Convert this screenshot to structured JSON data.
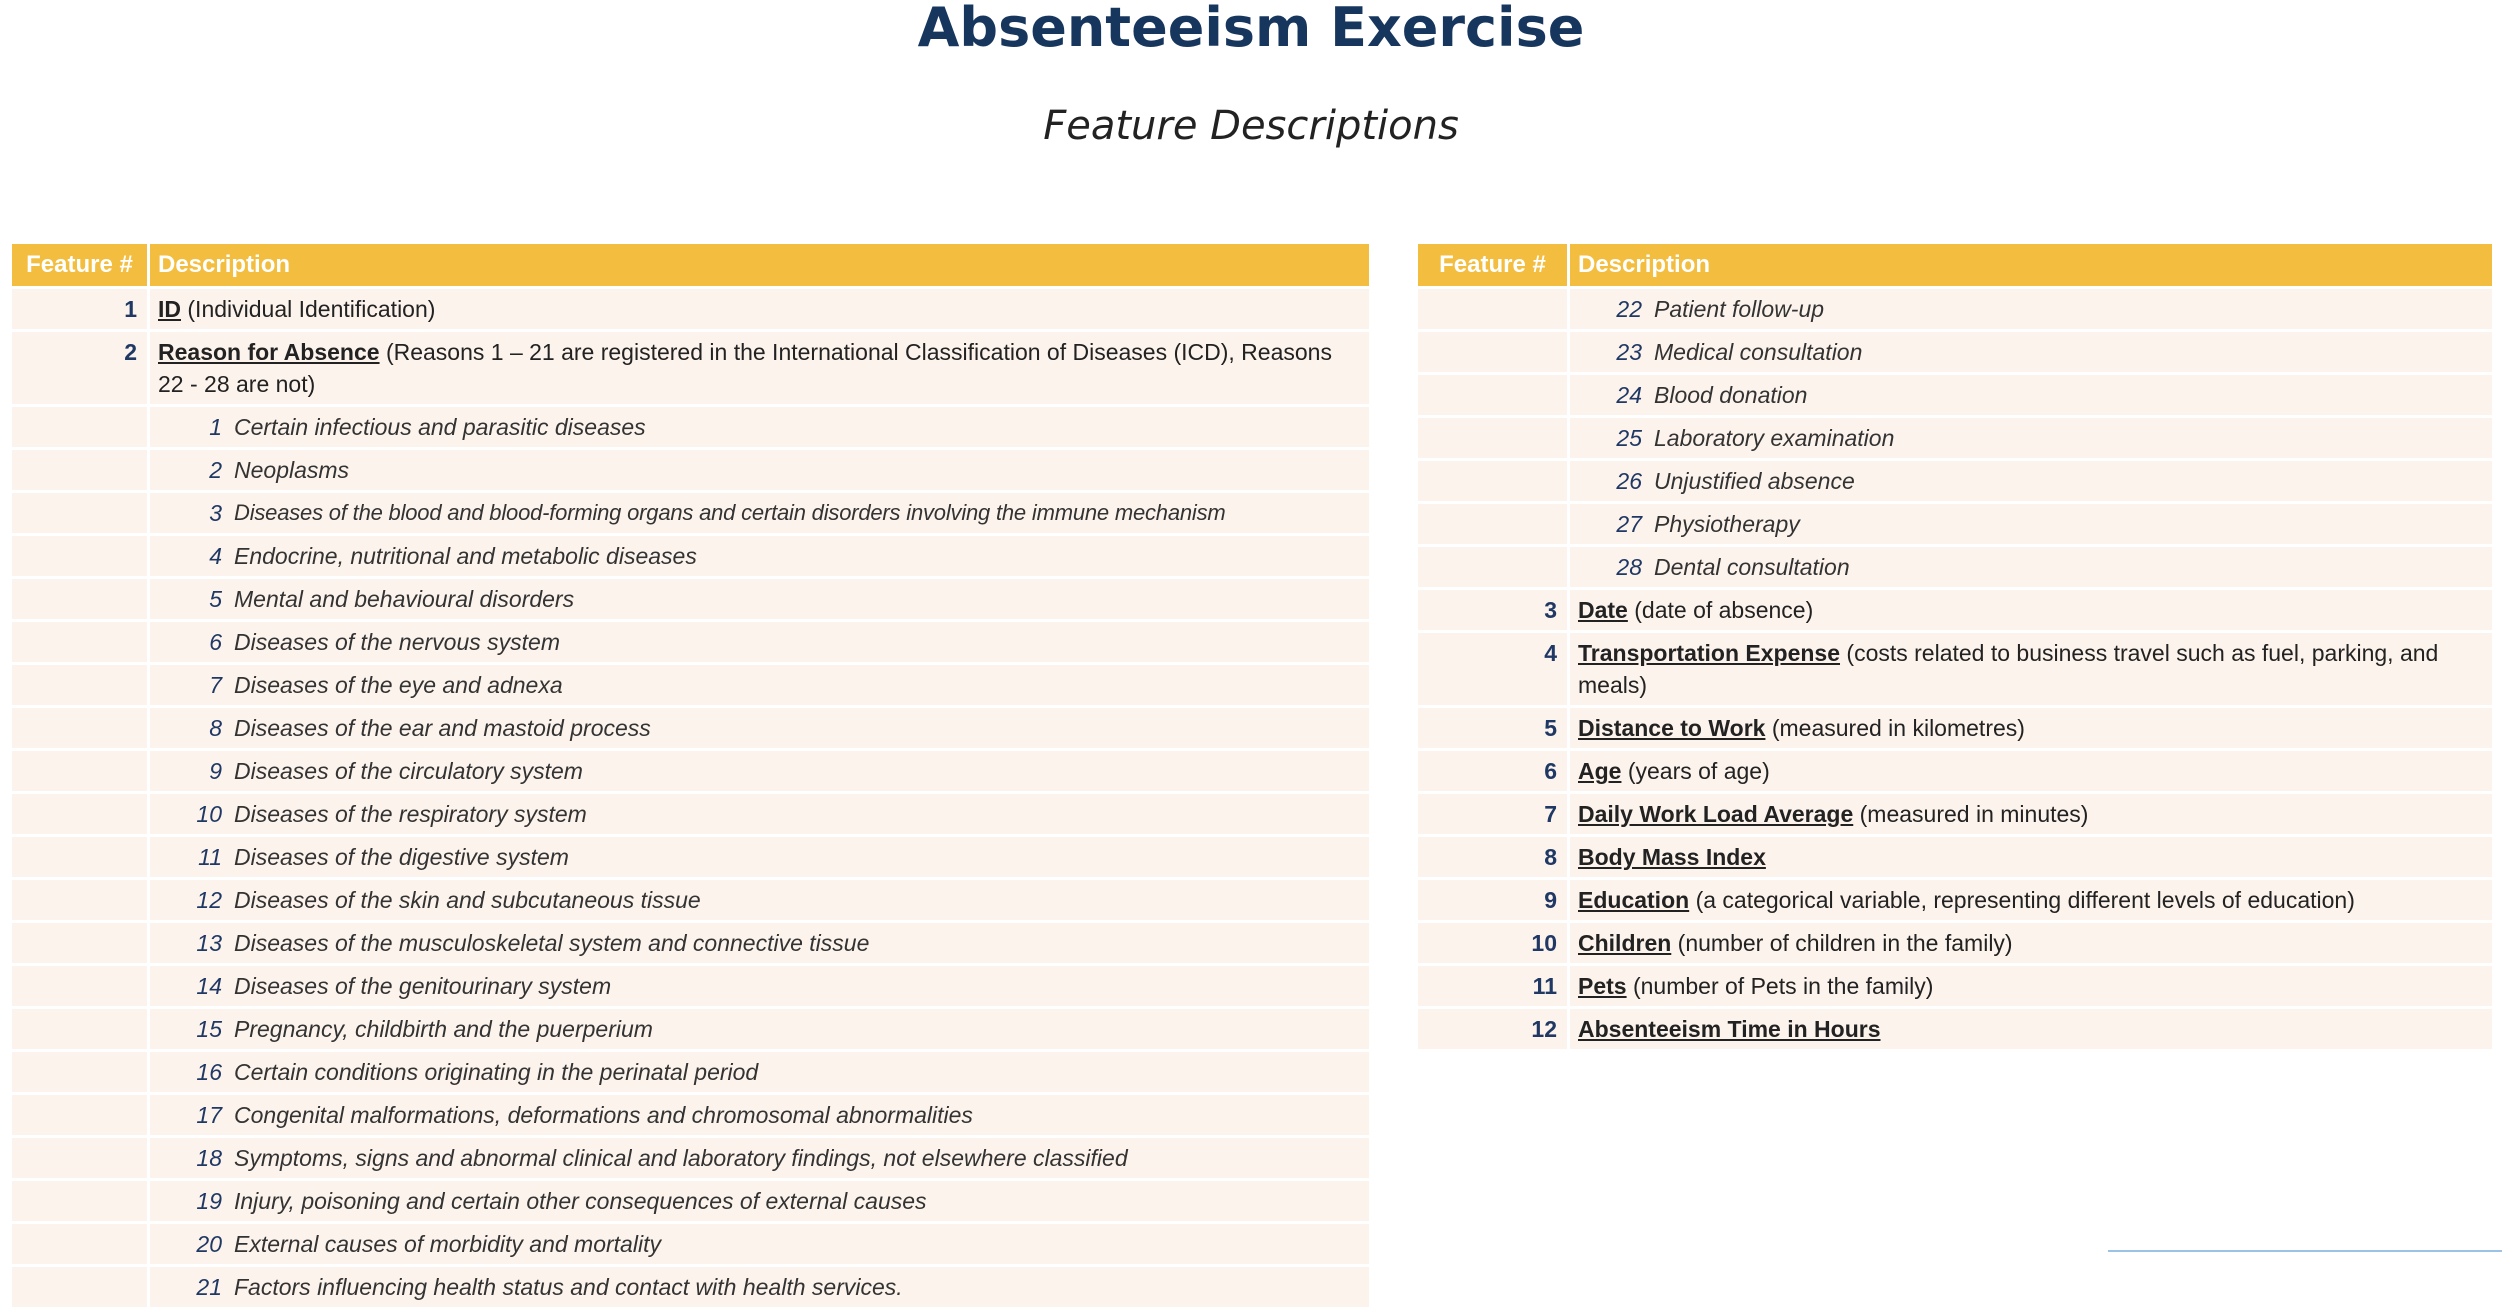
{
  "title": "Absenteeism Exercise",
  "subtitle": "Feature Descriptions",
  "table_headers": {
    "feature": "Feature #",
    "description": "Description"
  },
  "left_table": {
    "features": [
      {
        "num": "1",
        "name": "ID",
        "desc": "(Individual Identification)"
      },
      {
        "num": "2",
        "name": "Reason for Absence",
        "desc": "(Reasons 1 – 21 are registered in the International Classification of Diseases (ICD), Reasons 22 - 28 are not)"
      }
    ],
    "reasons": [
      {
        "code": "1",
        "label": "Certain infectious and parasitic diseases"
      },
      {
        "code": "2",
        "label": "Neoplasms"
      },
      {
        "code": "3",
        "label": "Diseases of the blood and blood-forming organs and certain disorders involving the immune mechanism"
      },
      {
        "code": "4",
        "label": "Endocrine, nutritional and metabolic diseases"
      },
      {
        "code": "5",
        "label": "Mental and behavioural disorders"
      },
      {
        "code": "6",
        "label": "Diseases of the nervous system"
      },
      {
        "code": "7",
        "label": "Diseases of the eye and adnexa"
      },
      {
        "code": "8",
        "label": "Diseases of the ear and mastoid process"
      },
      {
        "code": "9",
        "label": "Diseases of the circulatory system"
      },
      {
        "code": "10",
        "label": "Diseases of the respiratory system"
      },
      {
        "code": "11",
        "label": "Diseases of the digestive system"
      },
      {
        "code": "12",
        "label": "Diseases of the skin and subcutaneous tissue"
      },
      {
        "code": "13",
        "label": "Diseases of the musculoskeletal system and connective tissue"
      },
      {
        "code": "14",
        "label": "Diseases of the genitourinary system"
      },
      {
        "code": "15",
        "label": "Pregnancy, childbirth and the puerperium"
      },
      {
        "code": "16",
        "label": "Certain conditions originating in the perinatal period"
      },
      {
        "code": "17",
        "label": "Congenital malformations, deformations and chromosomal abnormalities"
      },
      {
        "code": "18",
        "label": "Symptoms, signs and abnormal clinical and laboratory findings, not elsewhere classified"
      },
      {
        "code": "19",
        "label": "Injury, poisoning and certain other consequences of external causes"
      },
      {
        "code": "20",
        "label": "External causes of morbidity and mortality"
      },
      {
        "code": "21",
        "label": "Factors influencing health status and contact with health services."
      }
    ]
  },
  "right_table": {
    "reasons": [
      {
        "code": "22",
        "label": "Patient follow-up"
      },
      {
        "code": "23",
        "label": "Medical consultation"
      },
      {
        "code": "24",
        "label": "Blood donation"
      },
      {
        "code": "25",
        "label": "Laboratory examination"
      },
      {
        "code": "26",
        "label": "Unjustified absence"
      },
      {
        "code": "27",
        "label": "Physiotherapy"
      },
      {
        "code": "28",
        "label": "Dental consultation"
      }
    ],
    "features": [
      {
        "num": "3",
        "name": "Date",
        "desc": "(date of absence)"
      },
      {
        "num": "4",
        "name": "Transportation Expense",
        "desc": "(costs related to business travel such as fuel, parking, and meals)"
      },
      {
        "num": "5",
        "name": "Distance to Work",
        "desc": "(measured in kilometres)"
      },
      {
        "num": "6",
        "name": "Age",
        "desc": "(years of age)"
      },
      {
        "num": "7",
        "name": "Daily Work Load Average",
        "desc": "(measured in minutes)"
      },
      {
        "num": "8",
        "name": "Body Mass Index",
        "desc": ""
      },
      {
        "num": "9",
        "name": "Education",
        "desc": "(a categorical variable, representing different levels of education)"
      },
      {
        "num": "10",
        "name": "Children",
        "desc": "(number of children in the family)"
      },
      {
        "num": "11",
        "name": "Pets",
        "desc": "(number of Pets in the family)"
      },
      {
        "num": "12",
        "name": "Absenteeism Time in Hours",
        "desc": ""
      }
    ]
  },
  "colors": {
    "title": "#17365D",
    "header_bg": "#F3BE40",
    "row_bg": "#FCF3EC",
    "number": "#1F3864"
  }
}
